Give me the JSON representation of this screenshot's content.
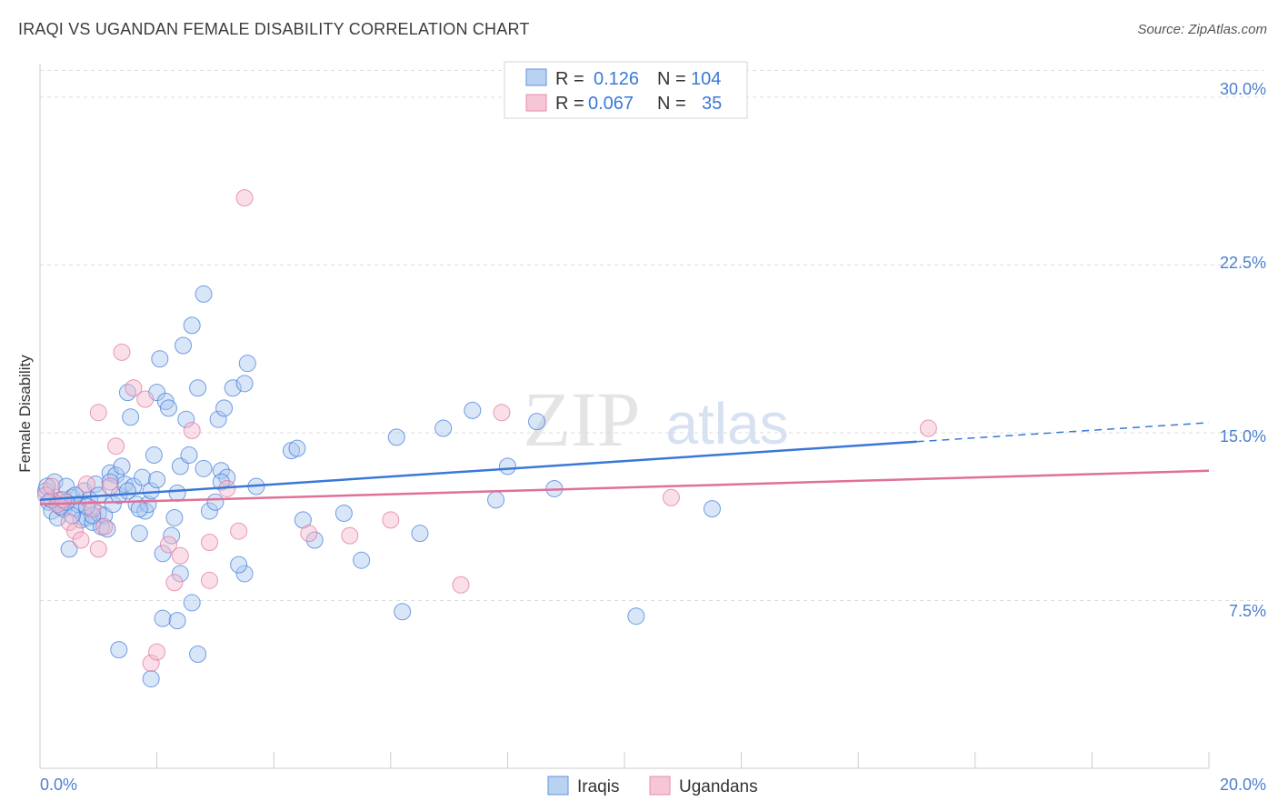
{
  "header": {
    "title": "IRAQI VS UGANDAN FEMALE DISABILITY CORRELATION CHART",
    "source": "Source: ZipAtlas.com"
  },
  "watermark": {
    "zip": "ZIP",
    "atlas": "atlas"
  },
  "colors": {
    "blue": "#3a78d8",
    "blue_fill": "#aac8f0",
    "pink": "#e07098",
    "pink_fill": "#f5b8cc",
    "grid": "#dddddd",
    "axis_label": "#4a7fd0"
  },
  "legend": {
    "rows": [
      {
        "r_label": "R =",
        "r_value": "0.126",
        "n_label": "N =",
        "n_value": "104"
      },
      {
        "r_label": "R =",
        "r_value": "0.067",
        "n_label": "N =",
        "n_value": "35"
      }
    ]
  },
  "bottom_legend": {
    "series1": "Iraqis",
    "series2": "Ugandans"
  },
  "chart_data": {
    "type": "scatter",
    "title": "IRAQI VS UGANDAN FEMALE DISABILITY CORRELATION CHART",
    "xlabel": "",
    "ylabel": "Female Disability",
    "xlim": [
      0,
      20
    ],
    "ylim": [
      0,
      31.5
    ],
    "x_tick_labels": [
      "0.0%",
      "20.0%"
    ],
    "y_ticks": [
      7.5,
      15.0,
      22.5,
      30.0
    ],
    "y_tick_labels": [
      "7.5%",
      "15.0%",
      "22.5%",
      "30.0%"
    ],
    "grid": true,
    "series": [
      {
        "name": "Iraqis",
        "color": "#3a78d8",
        "r": 0.126,
        "n": 104,
        "trend": {
          "x0": 0.0,
          "y0": 12.0,
          "x1": 15.0,
          "y1": 14.6,
          "dash_to_x": 20.0,
          "dash_to_y": 15.45
        },
        "points": [
          [
            0.1,
            12.4
          ],
          [
            0.15,
            11.9
          ],
          [
            0.2,
            11.5
          ],
          [
            0.25,
            12.8
          ],
          [
            0.3,
            11.2
          ],
          [
            0.35,
            12.0
          ],
          [
            0.4,
            11.6
          ],
          [
            0.45,
            12.6
          ],
          [
            0.5,
            9.8
          ],
          [
            0.55,
            12.1
          ],
          [
            0.6,
            11.6
          ],
          [
            0.65,
            11.8
          ],
          [
            0.7,
            11.1
          ],
          [
            0.75,
            12.4
          ],
          [
            0.8,
            11.2
          ],
          [
            0.85,
            12.0
          ],
          [
            0.9,
            11.0
          ],
          [
            0.95,
            12.7
          ],
          [
            1.0,
            11.4
          ],
          [
            1.05,
            10.8
          ],
          [
            1.1,
            11.3
          ],
          [
            1.15,
            10.7
          ],
          [
            1.2,
            13.2
          ],
          [
            1.25,
            11.8
          ],
          [
            1.3,
            13.1
          ],
          [
            1.35,
            12.2
          ],
          [
            1.4,
            13.5
          ],
          [
            1.45,
            12.7
          ],
          [
            1.5,
            16.8
          ],
          [
            1.55,
            15.7
          ],
          [
            1.6,
            12.6
          ],
          [
            1.65,
            11.8
          ],
          [
            1.7,
            10.5
          ],
          [
            1.75,
            13.0
          ],
          [
            1.8,
            11.5
          ],
          [
            1.85,
            11.8
          ],
          [
            1.9,
            12.4
          ],
          [
            1.95,
            14.0
          ],
          [
            2.0,
            16.8
          ],
          [
            2.05,
            18.3
          ],
          [
            2.1,
            9.6
          ],
          [
            2.15,
            16.4
          ],
          [
            2.2,
            16.1
          ],
          [
            2.25,
            10.4
          ],
          [
            2.3,
            11.2
          ],
          [
            2.35,
            12.3
          ],
          [
            2.4,
            13.5
          ],
          [
            2.45,
            18.9
          ],
          [
            2.5,
            15.6
          ],
          [
            2.55,
            14.0
          ],
          [
            2.6,
            19.8
          ],
          [
            2.7,
            17.0
          ],
          [
            2.8,
            21.2
          ],
          [
            2.8,
            13.4
          ],
          [
            2.9,
            11.5
          ],
          [
            3.0,
            11.9
          ],
          [
            3.05,
            15.6
          ],
          [
            3.1,
            13.3
          ],
          [
            3.15,
            16.1
          ],
          [
            3.2,
            13.0
          ],
          [
            3.3,
            17.0
          ],
          [
            3.5,
            17.2
          ],
          [
            3.55,
            18.1
          ],
          [
            3.7,
            12.6
          ],
          [
            4.3,
            14.2
          ],
          [
            4.4,
            14.3
          ],
          [
            4.5,
            11.1
          ],
          [
            4.7,
            10.2
          ],
          [
            5.2,
            11.4
          ],
          [
            5.5,
            9.3
          ],
          [
            6.1,
            14.8
          ],
          [
            6.5,
            10.5
          ],
          [
            6.9,
            15.2
          ],
          [
            7.4,
            16.0
          ],
          [
            7.8,
            12.0
          ],
          [
            8.0,
            13.5
          ],
          [
            8.5,
            15.5
          ],
          [
            8.8,
            12.5
          ],
          [
            10.2,
            6.8
          ],
          [
            11.5,
            11.6
          ],
          [
            1.35,
            5.3
          ],
          [
            1.9,
            4.0
          ],
          [
            2.1,
            6.7
          ],
          [
            2.35,
            6.6
          ],
          [
            2.6,
            7.4
          ],
          [
            2.7,
            5.1
          ],
          [
            2.4,
            8.7
          ],
          [
            3.5,
            8.7
          ],
          [
            3.4,
            9.1
          ],
          [
            6.2,
            7.0
          ],
          [
            3.1,
            12.8
          ],
          [
            2.0,
            12.9
          ],
          [
            1.0,
            12.2
          ],
          [
            0.55,
            11.3
          ],
          [
            0.35,
            11.7
          ],
          [
            0.2,
            12.0
          ],
          [
            0.12,
            12.6
          ],
          [
            0.6,
            12.2
          ],
          [
            1.2,
            12.8
          ],
          [
            1.5,
            12.4
          ],
          [
            1.7,
            11.6
          ],
          [
            0.9,
            11.3
          ],
          [
            0.8,
            11.7
          ],
          [
            0.45,
            11.9
          ]
        ]
      },
      {
        "name": "Ugandans",
        "color": "#e07098",
        "r": 0.067,
        "n": 35,
        "trend": {
          "x0": 0.0,
          "y0": 11.8,
          "x1": 20.0,
          "y1": 13.3
        },
        "points": [
          [
            0.1,
            12.2
          ],
          [
            0.2,
            12.6
          ],
          [
            0.3,
            11.8
          ],
          [
            0.4,
            12.0
          ],
          [
            0.5,
            11.0
          ],
          [
            0.6,
            10.6
          ],
          [
            0.7,
            10.2
          ],
          [
            0.8,
            12.7
          ],
          [
            0.9,
            11.6
          ],
          [
            1.0,
            9.8
          ],
          [
            1.1,
            10.8
          ],
          [
            1.2,
            12.6
          ],
          [
            1.3,
            14.4
          ],
          [
            1.4,
            18.6
          ],
          [
            1.6,
            17.0
          ],
          [
            1.8,
            16.5
          ],
          [
            1.9,
            4.7
          ],
          [
            2.0,
            5.2
          ],
          [
            2.2,
            10.0
          ],
          [
            2.4,
            9.5
          ],
          [
            2.3,
            8.3
          ],
          [
            2.6,
            15.1
          ],
          [
            2.9,
            8.4
          ],
          [
            2.9,
            10.1
          ],
          [
            3.2,
            12.5
          ],
          [
            3.4,
            10.6
          ],
          [
            3.5,
            25.5
          ],
          [
            4.6,
            10.5
          ],
          [
            5.3,
            10.4
          ],
          [
            6.0,
            11.1
          ],
          [
            7.2,
            8.2
          ],
          [
            7.9,
            15.9
          ],
          [
            10.8,
            12.1
          ],
          [
            15.2,
            15.2
          ],
          [
            1.0,
            15.9
          ]
        ]
      }
    ]
  }
}
